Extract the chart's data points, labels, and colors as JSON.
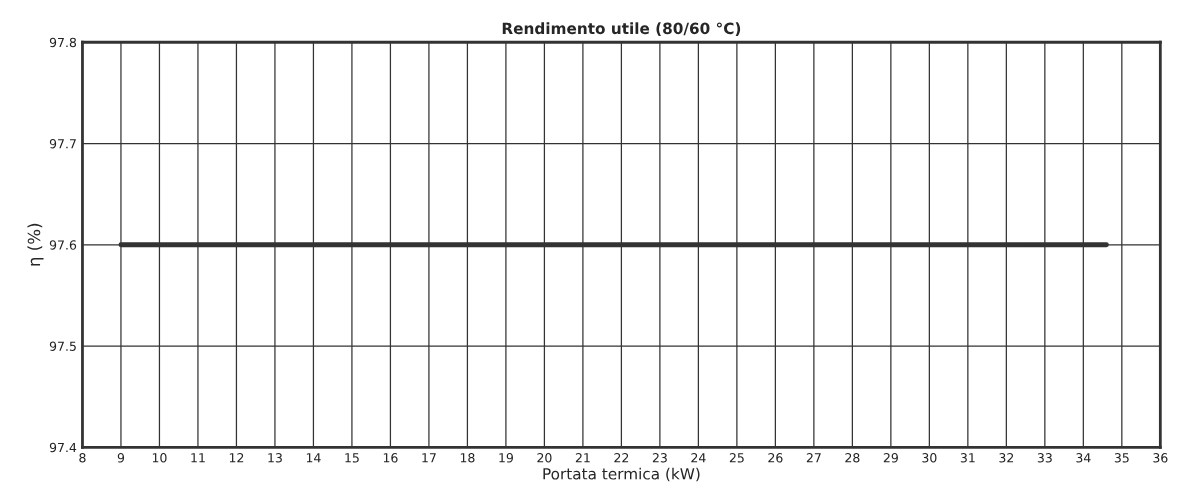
{
  "chart_data": {
    "type": "line",
    "title": "Rendimento utile (80/60 °C)",
    "xlabel": "Portata termica (kW)",
    "ylabel": "η (%)",
    "x": [
      9,
      34.6
    ],
    "series": [
      {
        "color": "#333333",
        "values": [
          97.6,
          97.6
        ]
      }
    ],
    "xlim": [
      8,
      36
    ],
    "xticks": [
      8,
      9,
      10,
      11,
      12,
      13,
      14,
      15,
      16,
      17,
      18,
      19,
      20,
      21,
      22,
      23,
      24,
      25,
      26,
      27,
      28,
      29,
      30,
      31,
      32,
      33,
      34,
      35,
      36
    ],
    "ylim": [
      97.4,
      97.8
    ],
    "yticks": [
      97.4,
      97.5,
      97.6,
      97.7,
      97.8
    ],
    "grid": true,
    "marker": "none",
    "line_style": "solid"
  }
}
